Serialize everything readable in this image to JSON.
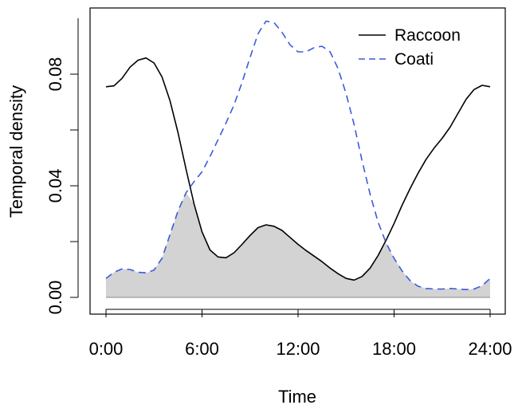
{
  "chart_data": {
    "type": "line",
    "xlabel": "Time",
    "ylabel": "Temporal density",
    "xlim": [
      0,
      24
    ],
    "ylim": [
      0,
      0.1
    ],
    "x_ticks": [
      0,
      6,
      12,
      18,
      24
    ],
    "x_tick_labels": [
      "0:00",
      "6:00",
      "12:00",
      "18:00",
      "24:00"
    ],
    "y_ticks": [
      0,
      0.02,
      0.04,
      0.06,
      0.08
    ],
    "y_tick_labels": [
      "0.00",
      "",
      "0.04",
      "",
      "0.08"
    ],
    "grid": false,
    "legend_position": "top-right",
    "overlap_fill": "#d3d3d3",
    "series": [
      {
        "name": "Raccoon",
        "color": "#000000",
        "line_style": "solid",
        "x": [
          0,
          0.5,
          1,
          1.5,
          2,
          2.5,
          3,
          3.5,
          4,
          4.5,
          5,
          5.5,
          6,
          6.5,
          7,
          7.5,
          8,
          8.5,
          9,
          9.5,
          10,
          10.5,
          11,
          11.5,
          12,
          12.5,
          13,
          13.5,
          14,
          14.5,
          15,
          15.5,
          16,
          16.5,
          17,
          17.5,
          18,
          18.5,
          19,
          19.5,
          20,
          20.5,
          21,
          21.5,
          22,
          22.5,
          23,
          23.5,
          24
        ],
        "values": [
          0.0755,
          0.0758,
          0.0785,
          0.0825,
          0.085,
          0.0858,
          0.084,
          0.079,
          0.0705,
          0.059,
          0.046,
          0.0335,
          0.0235,
          0.017,
          0.0145,
          0.0142,
          0.016,
          0.019,
          0.0222,
          0.025,
          0.026,
          0.0255,
          0.024,
          0.0215,
          0.019,
          0.0168,
          0.0148,
          0.0128,
          0.0105,
          0.0085,
          0.0068,
          0.0062,
          0.0075,
          0.0105,
          0.015,
          0.0205,
          0.0265,
          0.033,
          0.039,
          0.0445,
          0.0495,
          0.0535,
          0.057,
          0.061,
          0.066,
          0.071,
          0.0745,
          0.076,
          0.0755
        ]
      },
      {
        "name": "Coati",
        "color": "#3b5bdb",
        "line_style": "dashed",
        "x": [
          0,
          0.5,
          1,
          1.5,
          2,
          2.5,
          3,
          3.5,
          4,
          4.5,
          5,
          5.5,
          6,
          6.5,
          7,
          7.5,
          8,
          8.5,
          9,
          9.5,
          10,
          10.5,
          11,
          11.5,
          12,
          12.5,
          13,
          13.5,
          14,
          14.5,
          15,
          15.5,
          16,
          16.5,
          17,
          17.5,
          18,
          18.5,
          19,
          19.5,
          20,
          20.5,
          21,
          21.5,
          22,
          22.5,
          23,
          23.5,
          24
        ],
        "values": [
          0.0068,
          0.009,
          0.0102,
          0.01,
          0.009,
          0.0088,
          0.0098,
          0.014,
          0.0225,
          0.031,
          0.0375,
          0.0415,
          0.045,
          0.0505,
          0.0565,
          0.0625,
          0.069,
          0.077,
          0.086,
          0.0945,
          0.099,
          0.0985,
          0.095,
          0.0905,
          0.088,
          0.088,
          0.0895,
          0.09,
          0.088,
          0.082,
          0.073,
          0.062,
          0.049,
          0.037,
          0.027,
          0.0195,
          0.014,
          0.0095,
          0.006,
          0.004,
          0.0032,
          0.003,
          0.003,
          0.0032,
          0.003,
          0.0028,
          0.003,
          0.0042,
          0.0068
        ]
      }
    ]
  }
}
